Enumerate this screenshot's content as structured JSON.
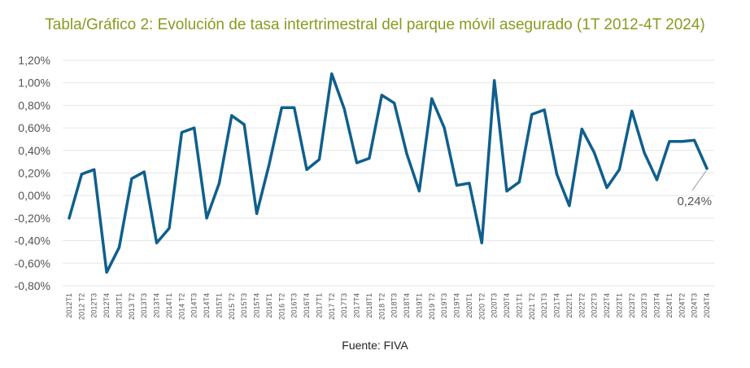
{
  "colors": {
    "title": "#8a9a1e",
    "line": "#0f5f8d",
    "grid": "#e6e6e6",
    "label_leader": "#9e9e9e"
  },
  "chart_data": {
    "type": "line",
    "title": "Tabla/Gráfico 2: Evolución de tasa intertrimestral del parque móvil asegurado (1T 2012-4T 2024)",
    "source": "Fuente: FIVA",
    "ylim": [
      -0.8,
      1.2
    ],
    "yticks": [
      -0.8,
      -0.6,
      -0.4,
      -0.2,
      0.0,
      0.2,
      0.4,
      0.6,
      0.8,
      1.0,
      1.2
    ],
    "ytick_labels": [
      "-0,80%",
      "-0,60%",
      "-0,40%",
      "-0,20%",
      "0,00%",
      "0,20%",
      "0,40%",
      "0,60%",
      "0,80%",
      "1,00%",
      "1,20%"
    ],
    "grid": true,
    "categories": [
      "2012T1",
      "2012 T2",
      "2012T3",
      "2012T4",
      "2013T1",
      "2013 T2",
      "2013T3",
      "2013T4",
      "2014T1",
      "2014 T2",
      "2014T3",
      "2014T4",
      "2015T1",
      "2015 T2",
      "2015T3",
      "2015T4",
      "2016T1",
      "2016 T2",
      "2016T3",
      "2016T4",
      "2017T1",
      "2017 T2",
      "2017T3",
      "2017T4",
      "2018T1",
      "2018 T2",
      "2018T3",
      "2018T4",
      "2019T1",
      "2019 T2",
      "2019T3",
      "2019T4",
      "2020T1",
      "2020 T2",
      "2020T3",
      "2020T4",
      "2021T1",
      "2021 T2",
      "2021T3",
      "2021T4",
      "2022T1",
      "2022T2",
      "2022T3",
      "2022T4",
      "2023T1",
      "2023T2",
      "2023T3",
      "2023T4",
      "2024T1",
      "2024T2",
      "2024T3",
      "2024T4"
    ],
    "series": [
      {
        "values": [
          -0.2,
          0.19,
          0.23,
          -0.68,
          -0.46,
          0.15,
          0.21,
          -0.42,
          -0.29,
          0.56,
          0.6,
          -0.2,
          0.11,
          0.71,
          0.63,
          -0.16,
          0.28,
          0.78,
          0.78,
          0.23,
          0.32,
          1.08,
          0.77,
          0.29,
          0.33,
          0.89,
          0.82,
          0.37,
          0.04,
          0.86,
          0.6,
          0.09,
          0.11,
          -0.42,
          1.02,
          0.04,
          0.12,
          0.72,
          0.76,
          0.19,
          -0.09,
          0.59,
          0.38,
          0.07,
          0.23,
          0.75,
          0.38,
          0.14,
          0.48,
          0.48,
          0.49,
          0.24
        ]
      }
    ],
    "annotations": [
      {
        "text": "0,24%",
        "category": "2024T4",
        "value": 0.24
      }
    ]
  }
}
